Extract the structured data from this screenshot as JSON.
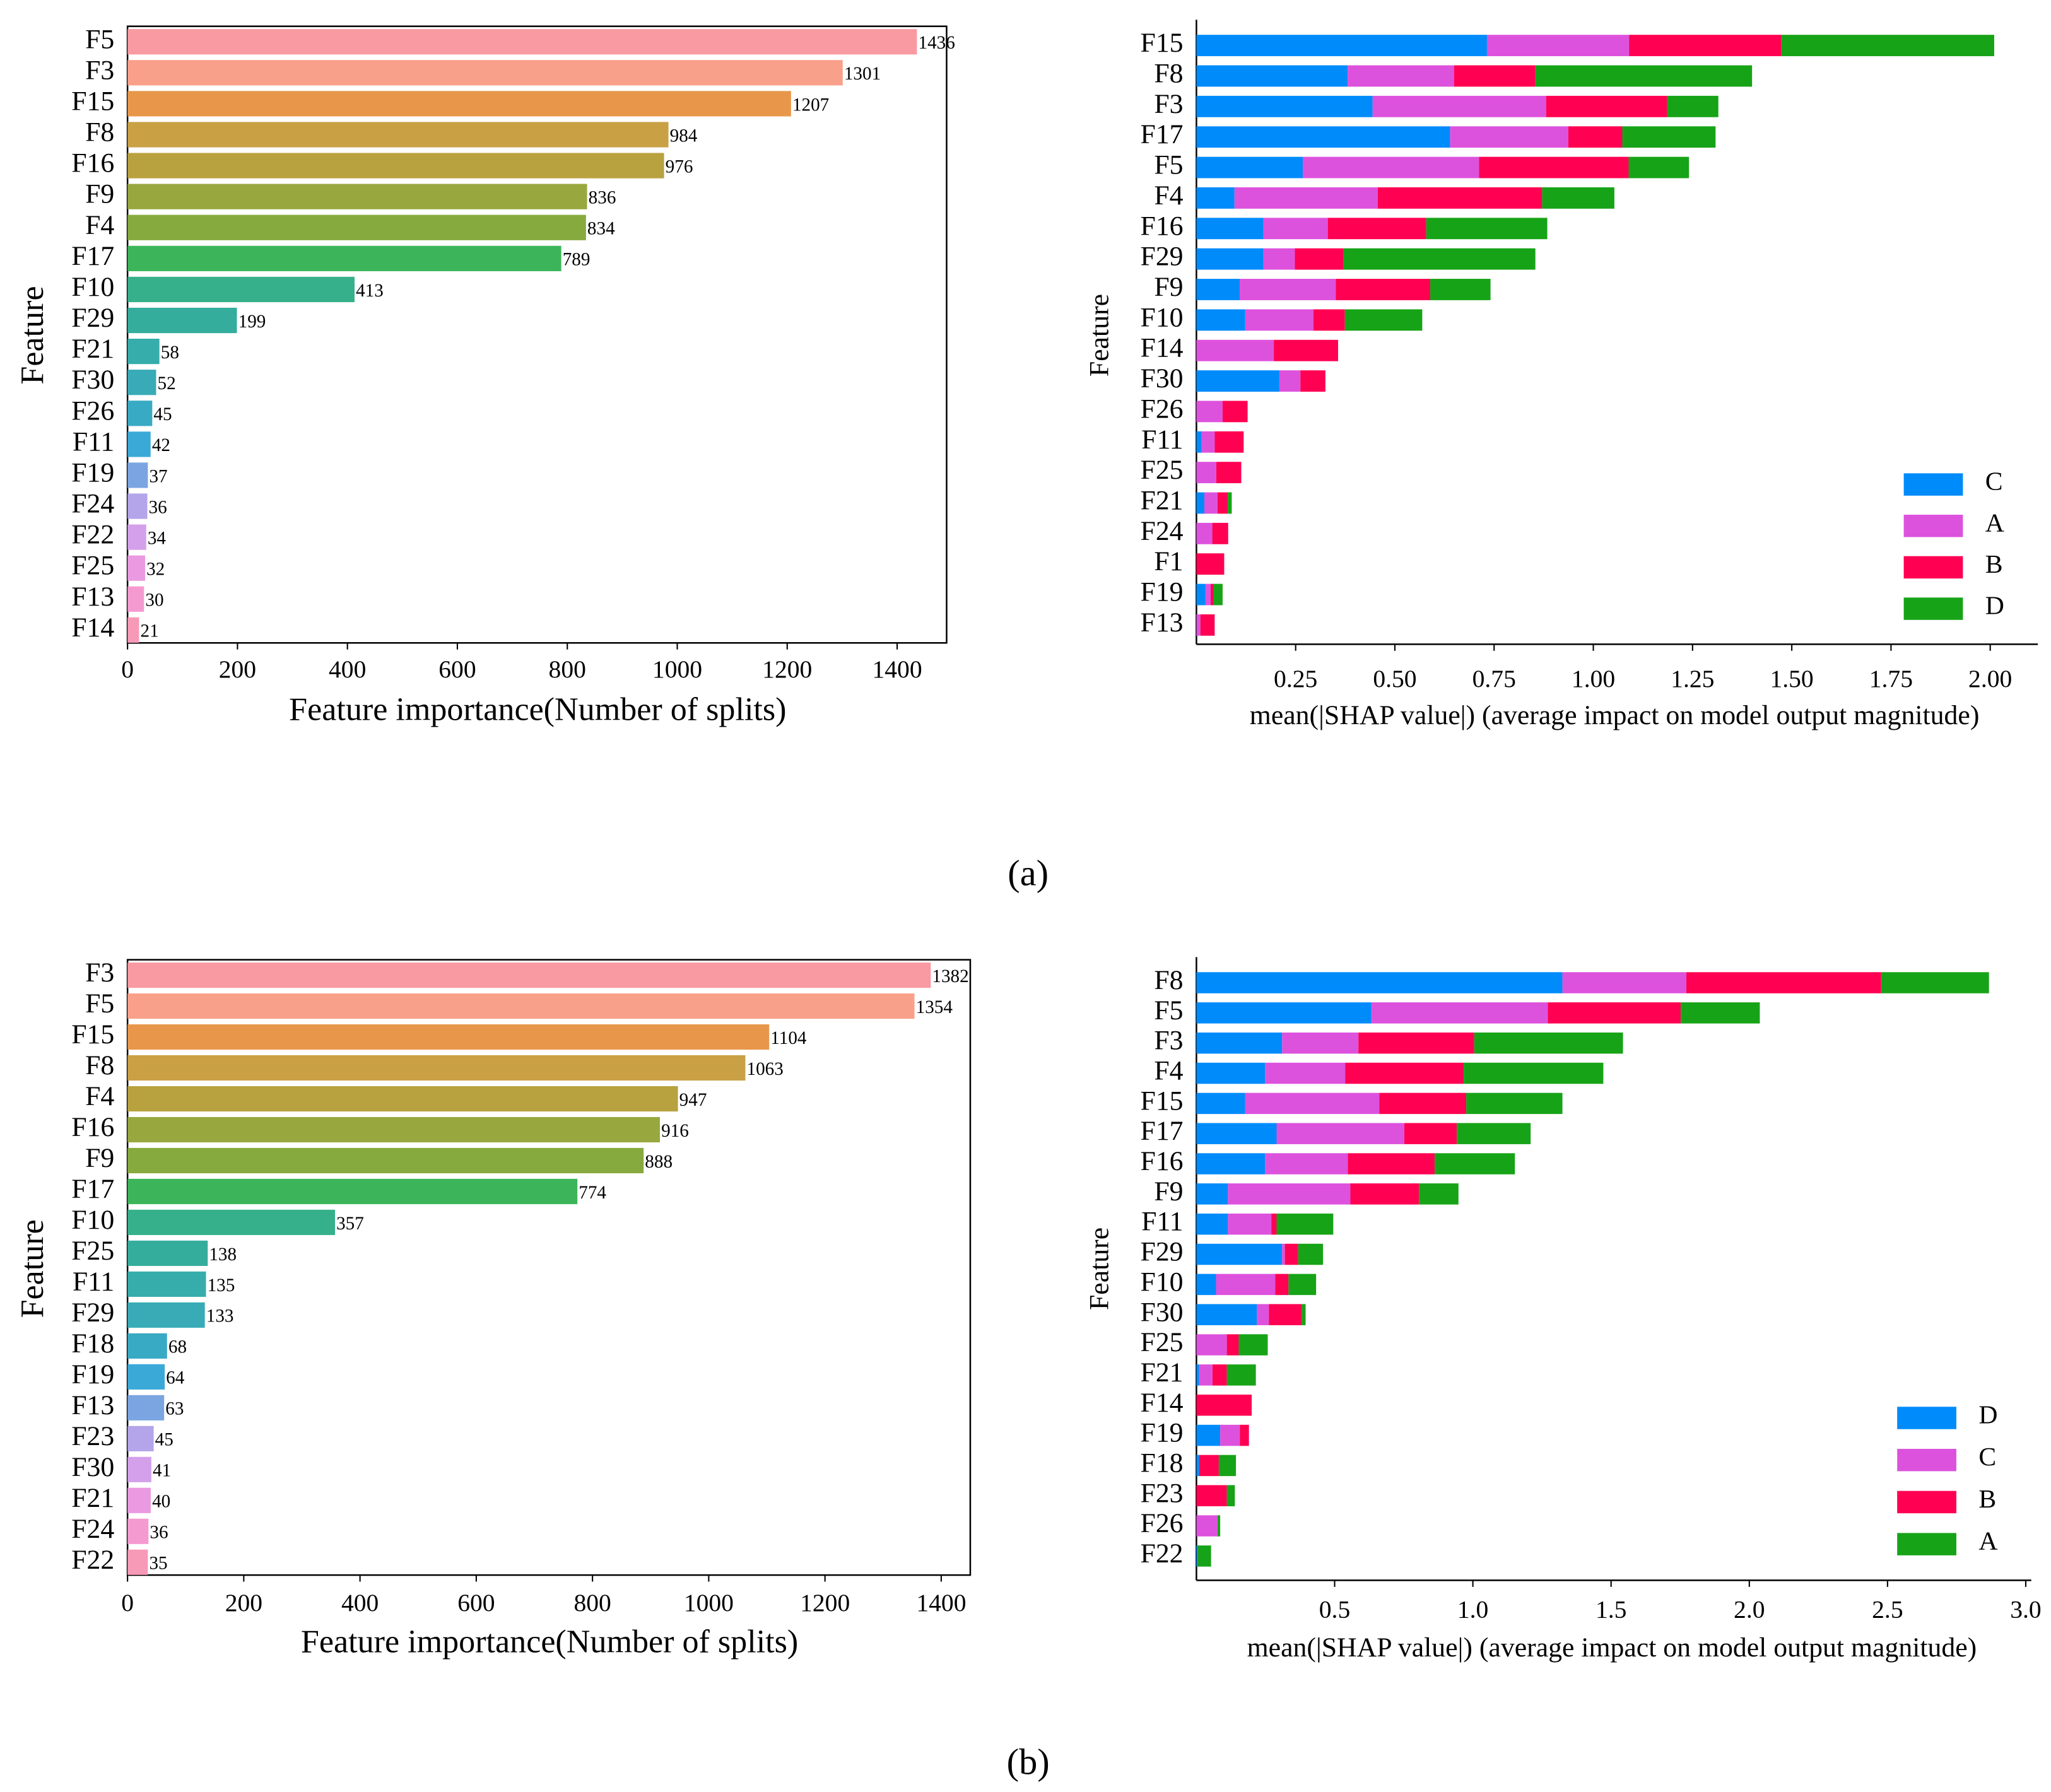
{
  "panel_labels": [
    "(a)",
    "(b)"
  ],
  "chart_data": [
    {
      "type": "barh",
      "categories": [
        "F5",
        "F3",
        "F15",
        "F8",
        "F16",
        "F9",
        "F4",
        "F17",
        "F10",
        "F29",
        "F21",
        "F30",
        "F26",
        "F11",
        "F19",
        "F24",
        "F22",
        "F25",
        "F13",
        "F14"
      ],
      "values": [
        1436,
        1301,
        1207,
        984,
        976,
        836,
        834,
        789,
        413,
        199,
        58,
        52,
        45,
        42,
        37,
        36,
        34,
        32,
        30,
        21
      ],
      "colors": [
        "#f99aa2",
        "#f9a08a",
        "#e8974a",
        "#c9a044",
        "#b8a23f",
        "#98a83e",
        "#86aa3e",
        "#3cb55a",
        "#36b08a",
        "#35ad9c",
        "#36adaa",
        "#38abb6",
        "#39aac4",
        "#3aa9d8",
        "#7aa5e0",
        "#b4a4ea",
        "#d4a0ea",
        "#ea9ae0",
        "#f59ad0",
        "#f79ab8"
      ],
      "xlim": [
        0,
        1490
      ],
      "xticks": [
        0,
        200,
        400,
        600,
        800,
        1000,
        1200,
        1400
      ],
      "xlabel": "Feature importance(Number of splits)",
      "ylabel": "Feature",
      "show_values": true
    },
    {
      "type": "stacked_barh",
      "categories": [
        "F15",
        "F8",
        "F3",
        "F17",
        "F5",
        "F4",
        "F16",
        "F29",
        "F9",
        "F10",
        "F14",
        "F30",
        "F26",
        "F11",
        "F25",
        "F21",
        "F24",
        "F1",
        "F19",
        "F13"
      ],
      "series": [
        {
          "name": "C",
          "color": "#008bfb",
          "values": [
            0.732,
            0.381,
            0.444,
            0.639,
            0.268,
            0.096,
            0.169,
            0.169,
            0.109,
            0.123,
            0,
            0.209,
            0,
            0.013,
            0,
            0.02,
            0,
            0,
            0.023,
            0
          ]
        },
        {
          "name": "A",
          "color": "#dd52dd",
          "values": [
            0.358,
            0.268,
            0.437,
            0.298,
            0.444,
            0.361,
            0.162,
            0.079,
            0.242,
            0.172,
            0.195,
            0.053,
            0.066,
            0.033,
            0.05,
            0.033,
            0.04,
            0,
            0.013,
            0.01
          ]
        },
        {
          "name": "B",
          "color": "#ff0052",
          "values": [
            0.384,
            0.205,
            0.305,
            0.136,
            0.377,
            0.414,
            0.248,
            0.123,
            0.238,
            0.079,
            0.162,
            0.063,
            0.063,
            0.073,
            0.063,
            0.026,
            0.04,
            0.07,
            0.007,
            0.036
          ]
        },
        {
          "name": "D",
          "color": "#17a317",
          "values": [
            0.536,
            0.546,
            0.129,
            0.235,
            0.152,
            0.182,
            0.305,
            0.483,
            0.152,
            0.195,
            0,
            0,
            0,
            0,
            0,
            0.01,
            0,
            0,
            0.023,
            0
          ]
        }
      ],
      "xlim": [
        0,
        2.12
      ],
      "xticks": [
        0.25,
        {
          "value": 0.5,
          "label": "0.50"
        },
        0.75,
        {
          "value": 1,
          "label": "1.00"
        },
        1.25,
        {
          "value": 1.5,
          "label": "1.50"
        },
        1.75,
        {
          "value": 2,
          "label": "2.00"
        }
      ],
      "xlabel": "mean(|SHAP value|) (average impact on model output magnitude)",
      "ylabel": "Feature",
      "legend": "lower right"
    },
    {
      "type": "barh",
      "categories": [
        "F3",
        "F5",
        "F15",
        "F8",
        "F4",
        "F16",
        "F9",
        "F17",
        "F10",
        "F25",
        "F11",
        "F29",
        "F18",
        "F19",
        "F13",
        "F23",
        "F30",
        "F21",
        "F24",
        "F22"
      ],
      "values": [
        1382,
        1354,
        1104,
        1063,
        947,
        916,
        888,
        774,
        357,
        138,
        135,
        133,
        68,
        64,
        63,
        45,
        41,
        40,
        36,
        35
      ],
      "colors": [
        "#f99aa2",
        "#f9a08a",
        "#e8974a",
        "#c9a044",
        "#b8a23f",
        "#98a83e",
        "#86aa3e",
        "#3cb55a",
        "#36b08a",
        "#35ad9c",
        "#36adaa",
        "#38abb6",
        "#39aac4",
        "#3aa9d8",
        "#7aa5e0",
        "#b4a4ea",
        "#d4a0ea",
        "#ea9ae0",
        "#f59ad0",
        "#f79ab8"
      ],
      "xlim": [
        0,
        1450
      ],
      "xticks": [
        0,
        200,
        400,
        600,
        800,
        1000,
        1200,
        1400
      ],
      "xlabel": "Feature importance(Number of splits)",
      "ylabel": "Feature",
      "show_values": true
    },
    {
      "type": "stacked_barh",
      "categories": [
        "F8",
        "F5",
        "F3",
        "F4",
        "F15",
        "F17",
        "F16",
        "F9",
        "F11",
        "F29",
        "F10",
        "F30",
        "F25",
        "F21",
        "F14",
        "F19",
        "F18",
        "F23",
        "F26",
        "F22"
      ],
      "series": [
        {
          "name": "D",
          "color": "#008bfb",
          "values": [
            1.324,
            0.633,
            0.31,
            0.248,
            0.176,
            0.29,
            0.248,
            0.114,
            0.114,
            0.31,
            0.071,
            0.219,
            0,
            0.01,
            0,
            0.086,
            0.01,
            0,
            0,
            0.005
          ]
        },
        {
          "name": "C",
          "color": "#dd52dd",
          "values": [
            0.448,
            0.638,
            0.276,
            0.29,
            0.486,
            0.462,
            0.3,
            0.443,
            0.157,
            0.01,
            0.214,
            0.043,
            0.11,
            0.048,
            0,
            0.071,
            0,
            0,
            0.076,
            0
          ]
        },
        {
          "name": "B",
          "color": "#ff0052",
          "values": [
            0.705,
            0.481,
            0.419,
            0.429,
            0.314,
            0.19,
            0.314,
            0.248,
            0.019,
            0.048,
            0.048,
            0.119,
            0.043,
            0.052,
            0.2,
            0.033,
            0.071,
            0.11,
            0,
            0
          ]
        },
        {
          "name": "A",
          "color": "#17a317",
          "values": [
            0.39,
            0.286,
            0.538,
            0.505,
            0.348,
            0.267,
            0.29,
            0.143,
            0.205,
            0.09,
            0.1,
            0.014,
            0.105,
            0.105,
            0,
            0,
            0.062,
            0.029,
            0.01,
            0.048
          ]
        }
      ],
      "xlim": [
        0,
        3.02
      ],
      "xticks": [
        0.5,
        {
          "value": 1,
          "label": "1.0"
        },
        1.5,
        {
          "value": 2,
          "label": "2.0"
        },
        2.5,
        {
          "value": 3,
          "label": "3.0"
        }
      ],
      "xlabel": "mean(|SHAP value|) (average impact on model output magnitude)",
      "ylabel": "Feature",
      "legend": "lower right"
    }
  ]
}
